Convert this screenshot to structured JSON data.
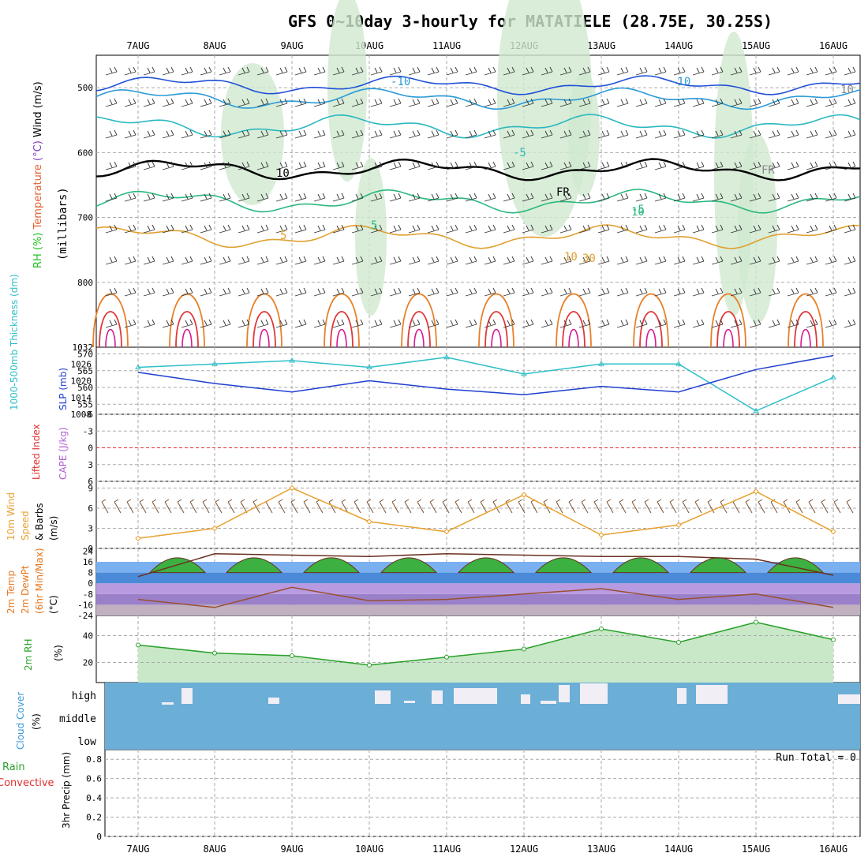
{
  "title": "GFS 0~10day 3-hourly for MATATIELE (28.75E, 30.25S)",
  "date_labels": [
    "7AUG",
    "8AUG",
    "9AUG",
    "10AUG",
    "11AUG",
    "12AUG",
    "13AUG",
    "14AUG",
    "15AUG",
    "16AUG"
  ],
  "colors": {
    "frame": "#000000",
    "grid": "#aaaaaa",
    "blue": "#1f3fcf",
    "cyan": "#2fbfc8",
    "orange": "#e8a030",
    "red": "#e03030",
    "green": "#2aa02a",
    "rh_fill": "#cfe8cf",
    "cloud": "#6baed6",
    "cape": "#b060d0",
    "temp_orange": "#e87820"
  },
  "panels": {
    "upper_air": {
      "ylabel_parts": [
        "RH (%)",
        "Temperature",
        " (°C)",
        "Wind",
        " (m/s)"
      ],
      "ylabel_units": "(millibars)",
      "y_ticks": [
        "500",
        "600",
        "700",
        "800"
      ],
      "contour_labels": [
        "-10",
        "-10",
        "-5",
        "-5",
        "5",
        "5",
        "10",
        "10",
        "FR",
        "FR",
        "10",
        "30",
        "10"
      ]
    },
    "thickness_slp": {
      "ylabel_left": "1000-500mb Thickness (dm)",
      "ylabel_right": "SLP (mb)",
      "left_ticks": [
        "570",
        "565",
        "560",
        "555"
      ],
      "right_ticks": [
        "1026",
        "1020",
        "1014",
        "1008"
      ],
      "top_tick": "1032"
    },
    "li_cape": {
      "ylabel_left": "Lifted Index",
      "ylabel_right": "CAPE (J/kg)",
      "ticks": [
        "-6",
        "-3",
        "0",
        "3",
        "6"
      ]
    },
    "wind10m": {
      "ylabel_parts": [
        "10m Wind",
        "Speed",
        "& Barbs",
        "(m/s)"
      ],
      "ticks": [
        "9",
        "6",
        "3",
        "0"
      ]
    },
    "temp2m": {
      "ylabel_parts": [
        "2m Temp",
        "2m DewPt",
        "(6hr Min/Max)",
        "(°C)"
      ],
      "ticks": [
        "24",
        "16",
        "8",
        "0",
        "-8",
        "-16",
        "-24"
      ]
    },
    "rh2m": {
      "ylabel_parts": [
        "2m RH",
        "(%)"
      ],
      "ticks": [
        "40",
        "20"
      ]
    },
    "cloud": {
      "ylabel_parts": [
        "Cloud Cover",
        "(%)"
      ],
      "levels": [
        "high",
        "middle",
        "low"
      ]
    },
    "precip": {
      "ylabel_parts": [
        "Total / Rain",
        "Convective",
        "3hr Precip (mm)"
      ],
      "ticks": [
        "0.8",
        "0.6",
        "0.4",
        "0.2",
        "0"
      ],
      "run_total": "Run Total = 0"
    }
  },
  "chart_data": [
    {
      "type": "line",
      "title": "GFS 0~10day 3-hourly for MATATIELE (28.75E, 30.25S)",
      "panel": "1000-500mb Thickness (dm) / SLP (mb)",
      "x": [
        "7AUG",
        "8AUG",
        "9AUG",
        "10AUG",
        "11AUG",
        "12AUG",
        "13AUG",
        "14AUG",
        "15AUG",
        "16AUG"
      ],
      "series": [
        {
          "name": "1000-500mb Thickness (dm)",
          "values": [
            566,
            567,
            568,
            566,
            569,
            564,
            567,
            567,
            553,
            563
          ]
        },
        {
          "name": "SLP (mb)",
          "values": [
            1023,
            1019,
            1016,
            1020,
            1017,
            1015,
            1018,
            1016,
            1024,
            1029
          ]
        }
      ],
      "ylim_left": [
        552,
        572
      ],
      "ylim_right": [
        1008,
        1032
      ]
    },
    {
      "type": "line",
      "panel": "10m Wind Speed & Barbs (m/s)",
      "x": [
        "7AUG",
        "8AUG",
        "9AUG",
        "10AUG",
        "11AUG",
        "12AUG",
        "13AUG",
        "14AUG",
        "15AUG",
        "16AUG"
      ],
      "series": [
        {
          "name": "10m Wind Speed",
          "values": [
            1.5,
            3.0,
            9.0,
            4.0,
            2.5,
            8.0,
            2.0,
            3.5,
            8.5,
            2.5
          ]
        }
      ],
      "ylim": [
        0,
        10
      ]
    },
    {
      "type": "line",
      "panel": "2m Temp / 2m DewPt (°C)",
      "x": [
        "7AUG",
        "8AUG",
        "9AUG",
        "10AUG",
        "11AUG",
        "12AUG",
        "13AUG",
        "14AUG",
        "15AUG",
        "16AUG"
      ],
      "series": [
        {
          "name": "2m Temp",
          "values": [
            5,
            22,
            21,
            20,
            22,
            21,
            20,
            20,
            18,
            6
          ]
        },
        {
          "name": "2m DewPt",
          "values": [
            -12,
            -18,
            -3,
            -13,
            -12,
            -8,
            -4,
            -12,
            -8,
            -18
          ]
        }
      ],
      "ylim": [
        -24,
        26
      ]
    },
    {
      "type": "area",
      "panel": "2m RH (%)",
      "x": [
        "7AUG",
        "8AUG",
        "9AUG",
        "10AUG",
        "11AUG",
        "12AUG",
        "13AUG",
        "14AUG",
        "15AUG",
        "16AUG"
      ],
      "series": [
        {
          "name": "2m RH",
          "values": [
            33,
            27,
            25,
            18,
            24,
            30,
            45,
            35,
            50,
            37
          ]
        }
      ],
      "ylim": [
        5,
        55
      ]
    },
    {
      "type": "line",
      "panel": "3hr Precip (mm)",
      "x": [
        "7AUG",
        "16AUG"
      ],
      "series": [
        {
          "name": "Total / Rain",
          "values": [
            0,
            0
          ]
        }
      ],
      "ylim": [
        0,
        0.9
      ]
    }
  ]
}
